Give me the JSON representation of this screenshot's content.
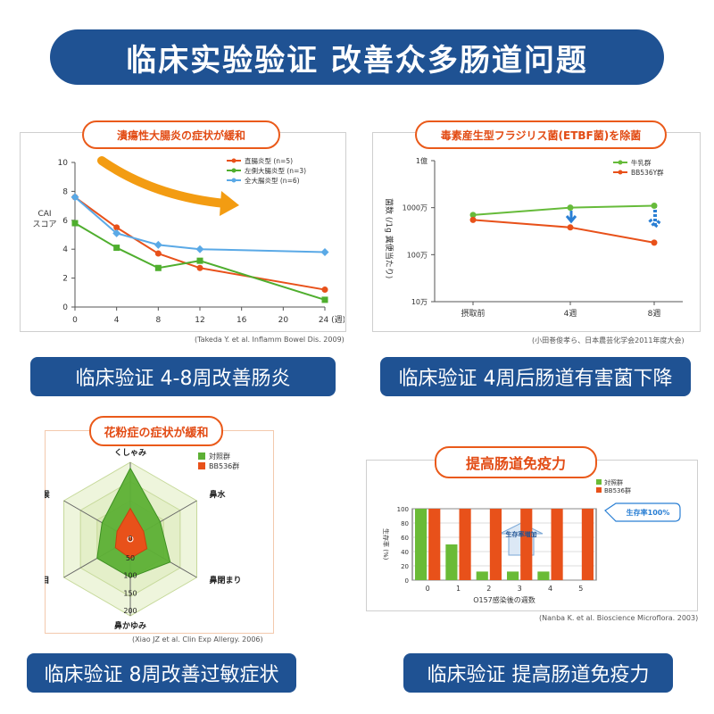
{
  "banner": {
    "title": "临床实验验证 改善众多肠道问题"
  },
  "panels": {
    "cai": {
      "title": "潰瘍性大腸炎の症状が緩和",
      "citation": "(Takeda Y. et al. Inflamm Bowel Dis. 2009)",
      "caption": "临床验证 4-8周改善肠炎"
    },
    "etbf": {
      "title": "毒素産生型フラジリス菌(ETBF菌)を除菌",
      "citation": "(小田巻俊孝ら、日本農芸化学会2011年度大会)",
      "caption": "临床验证 4周后肠道有害菌下降"
    },
    "allergy": {
      "title": "花粉症の症状が緩和",
      "citation": "(Xiao JZ et al. Clin Exp Allergy. 2006)",
      "caption": "临床验证 8周改善过敏症状"
    },
    "immunity": {
      "title": "提高肠道免疫力",
      "citation": "(Nanba K. et al. Bioscience Microflora. 2003)",
      "caption": "临床验证 提高肠道免疫力"
    }
  },
  "chart_data": [
    {
      "id": "cai",
      "type": "line",
      "ylabel": "CAI スコア",
      "x": [
        0,
        4,
        8,
        12,
        24
      ],
      "xticks": [
        "0",
        "4",
        "8",
        "12",
        "16",
        "20",
        "24 (週)"
      ],
      "xlim": [
        0,
        24
      ],
      "ylim": [
        0,
        10
      ],
      "yticks": [
        "0",
        "2",
        "4",
        "6",
        "8",
        "10"
      ],
      "legend_position": "top-right",
      "series": [
        {
          "name": "直腸炎型 (n=5)",
          "color": "#e8511a",
          "values": [
            7.6,
            5.5,
            3.7,
            2.7,
            1.2
          ]
        },
        {
          "name": "左側大腸炎型 (n=3)",
          "color": "#4fae2e",
          "values": [
            5.8,
            4.1,
            2.7,
            3.2,
            0.5
          ]
        },
        {
          "name": "全大腸炎型 (n=6)",
          "color": "#5aa9e6",
          "values": [
            7.6,
            5.1,
            4.3,
            4.0,
            3.8
          ]
        }
      ]
    },
    {
      "id": "etbf",
      "type": "line",
      "ylabel": "菌数 (/1g 糞便当たり)",
      "y_scale": "log",
      "yticks": [
        "1億",
        "1000万",
        "100万",
        "10万"
      ],
      "categories": [
        "摂取前",
        "4週",
        "8週"
      ],
      "legend_position": "top-right",
      "series": [
        {
          "name": "牛乳群",
          "color": "#66bb3a",
          "values": [
            7000000,
            10000000,
            11000000
          ]
        },
        {
          "name": "BB536Y群",
          "color": "#e8511a",
          "values": [
            5500000,
            3800000,
            1800000
          ]
        }
      ]
    },
    {
      "id": "allergy",
      "type": "radar",
      "axes": [
        "くしゃみ",
        "鼻水",
        "鼻閉まり",
        "鼻かゆみ",
        "目",
        "喉"
      ],
      "rings": [
        "0",
        "50",
        "100",
        "150",
        "200"
      ],
      "rmax": 200,
      "legend_position": "top-right",
      "series": [
        {
          "name": "対照群",
          "color": "#5db035",
          "values": [
            185,
            90,
            120,
            100,
            100,
            85
          ]
        },
        {
          "name": "BB536群",
          "color": "#e8511a",
          "values": [
            80,
            40,
            50,
            50,
            45,
            40
          ]
        }
      ]
    },
    {
      "id": "immunity",
      "type": "bar",
      "ylabel": "生存率 (%)",
      "xlabel": "O157感染後の週数",
      "categories": [
        "0",
        "1",
        "2",
        "3",
        "4",
        "5"
      ],
      "ylim": [
        0,
        100
      ],
      "yticks": [
        "0",
        "20",
        "40",
        "60",
        "80",
        "100"
      ],
      "legend_position": "top-left",
      "series": [
        {
          "name": "対照群",
          "color": "#6abb36",
          "values": [
            100,
            50,
            12,
            12,
            12,
            0
          ]
        },
        {
          "name": "BB536群",
          "color": "#e8511a",
          "values": [
            100,
            100,
            100,
            100,
            100,
            100
          ]
        }
      ],
      "annotations": {
        "survival100": "生存率100%",
        "increase": "生存率増加"
      }
    }
  ]
}
